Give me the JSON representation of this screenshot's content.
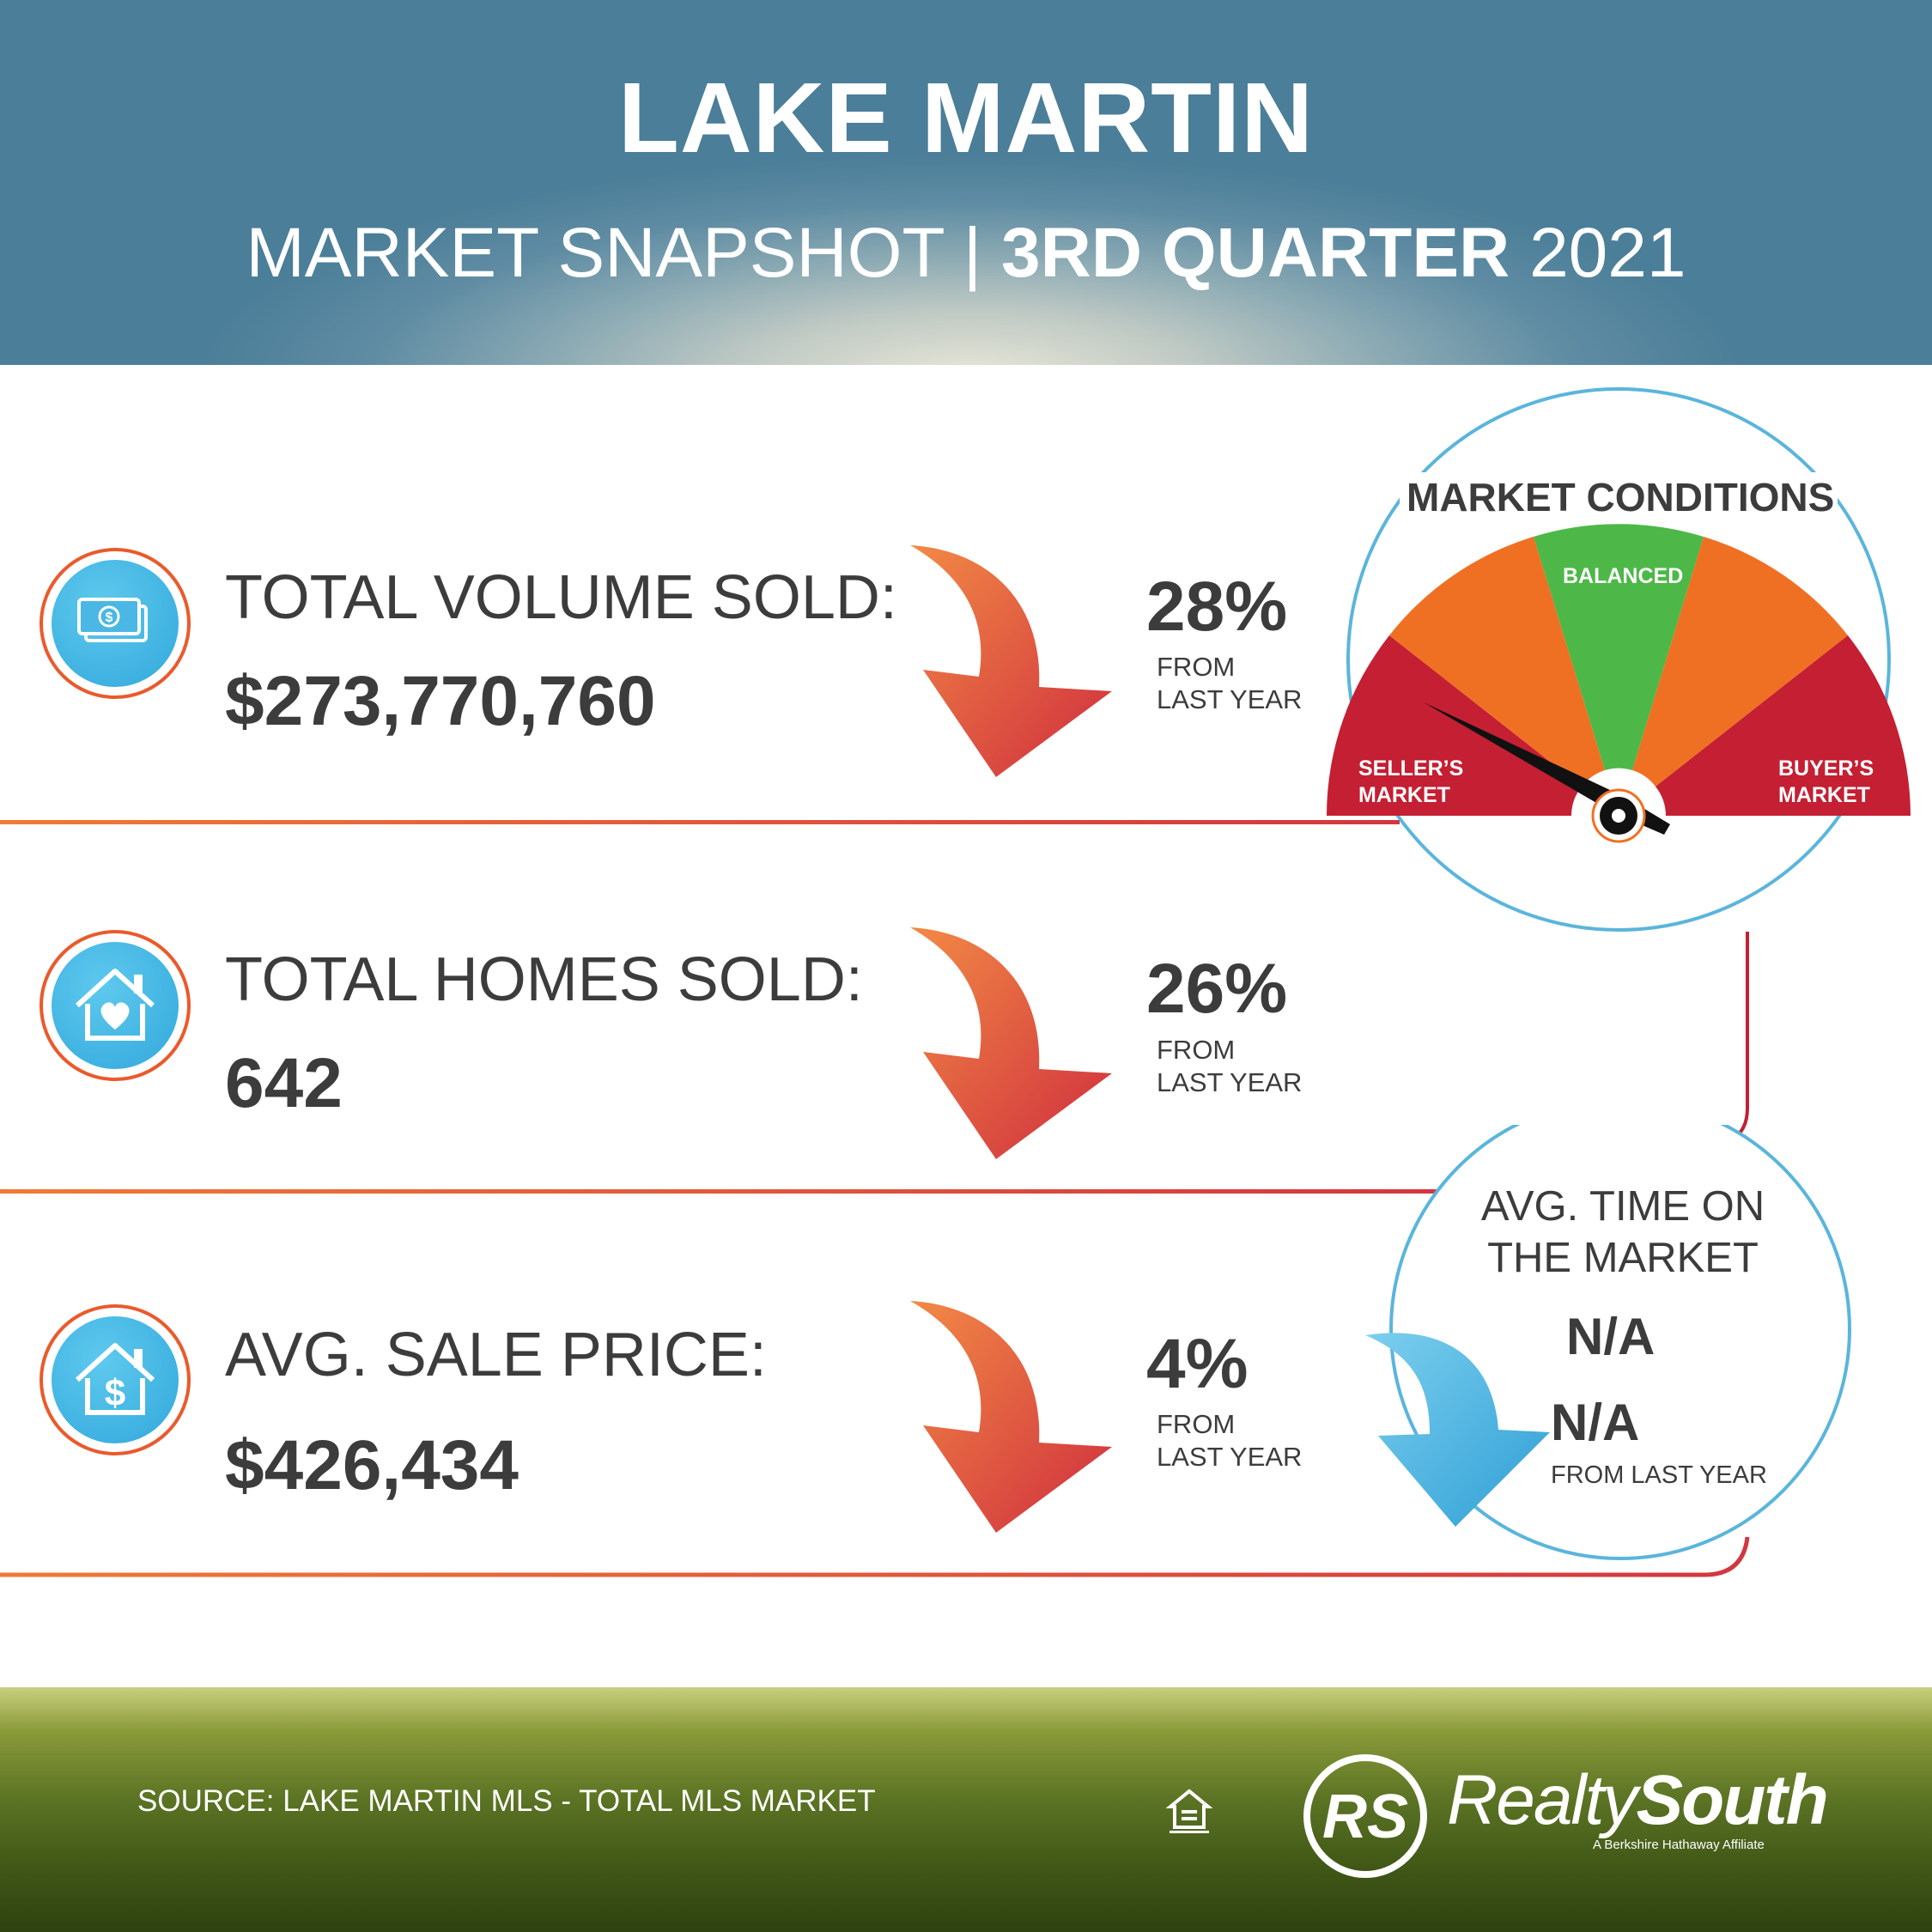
{
  "header": {
    "title": "LAKE MARTIN",
    "subtitle_left": "MARKET SNAPSHOT",
    "subtitle_divider": "|",
    "subtitle_bold": "3RD QUARTER",
    "subtitle_year": "2021"
  },
  "stats": [
    {
      "label": "TOTAL VOLUME SOLD:",
      "value": "$273,770,760",
      "change": "28%",
      "from_line1": "FROM",
      "from_line2": "LAST YEAR",
      "icon": "money-icon",
      "direction": "down"
    },
    {
      "label": "TOTAL HOMES SOLD:",
      "value": "642",
      "change": "26%",
      "from_line1": "FROM",
      "from_line2": "LAST YEAR",
      "icon": "house-heart-icon",
      "direction": "down"
    },
    {
      "label": "AVG. SALE PRICE:",
      "value": "$426,434",
      "change": "4%",
      "from_line1": "FROM",
      "from_line2": "LAST YEAR",
      "icon": "house-dollar-icon",
      "direction": "down"
    }
  ],
  "market_conditions": {
    "title": "MARKET CONDITIONS",
    "balanced": "BALANCED",
    "sellers_line1": "SELLER’S",
    "sellers_line2": "MARKET",
    "buyers_line1": "BUYER’S",
    "buyers_line2": "MARKET",
    "needle": "seller's market",
    "colors": {
      "red": "#c41f33",
      "orange": "#f07023",
      "green": "#4db848"
    }
  },
  "avg_time": {
    "title_line1": "AVG. TIME ON",
    "title_line2": "THE MARKET",
    "value": "N/A",
    "change": "N/A",
    "from": "FROM LAST YEAR"
  },
  "footer": {
    "source": "SOURCE: LAKE MARTIN MLS - TOTAL MLS MARKET",
    "logo_mark": "RS",
    "brand_light": "Realty",
    "brand_bold": "South",
    "tagline": "A Berkshire Hathaway Affiliate",
    "housing_icon": "equal-housing-icon"
  }
}
